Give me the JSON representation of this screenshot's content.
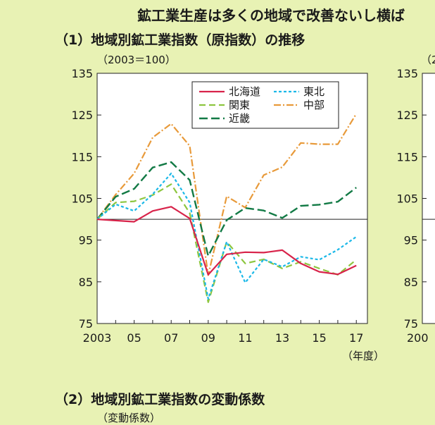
{
  "header": {
    "text": "鉱工業生産は多くの地域で改善ないし横ば"
  },
  "section1": {
    "title": "（1）地域別鉱工業指数（原指数）の推移",
    "unit": "（2003＝100）"
  },
  "section2": {
    "title": "（2）地域別鉱工業指数の変動係数",
    "unit": "（変動係数）"
  },
  "right_panel": {
    "unit_fragment": "（2",
    "y_ticks": [
      "135",
      "125",
      "115",
      "105",
      "95",
      "85",
      "75"
    ],
    "x_tick_fragment": "200"
  },
  "chart_data": {
    "type": "line",
    "x_unit": "（年度）",
    "x_tick_labels": [
      "2003",
      "05",
      "07",
      "09",
      "11",
      "13",
      "15",
      "17"
    ],
    "x_ticks_at": [
      2003,
      2005,
      2007,
      2009,
      2011,
      2013,
      2015,
      2017
    ],
    "ylim": [
      75,
      135
    ],
    "y_ticks": [
      135,
      125,
      115,
      105,
      95,
      85,
      75
    ],
    "baseline": 100,
    "x": [
      2003,
      2004,
      2005,
      2006,
      2007,
      2008,
      2009,
      2010,
      2011,
      2012,
      2013,
      2014,
      2015,
      2016,
      2017
    ],
    "series": [
      {
        "name": "北海道",
        "color": "#d8234a",
        "dash": "",
        "width": 2.2,
        "values": [
          100.0,
          99.7,
          99.4,
          102.0,
          103.0,
          100.2,
          86.7,
          91.6,
          92.1,
          92.0,
          92.6,
          89.4,
          87.4,
          86.8,
          88.9
        ]
      },
      {
        "name": "東北",
        "color": "#1ab8e8",
        "dash": "4,3",
        "width": 2.2,
        "values": [
          100.0,
          103.6,
          102.0,
          106.0,
          111.0,
          104.0,
          80.9,
          94.6,
          84.8,
          90.4,
          88.6,
          91.0,
          90.3,
          92.7,
          95.8
        ]
      },
      {
        "name": "関東",
        "color": "#8dc63f",
        "dash": "9,5",
        "width": 2.2,
        "values": [
          100.0,
          104.0,
          104.3,
          105.8,
          108.4,
          101.5,
          80.1,
          94.6,
          89.4,
          90.4,
          88.2,
          89.8,
          88.2,
          86.7,
          90.3
        ]
      },
      {
        "name": "中部",
        "color": "#e89a3a",
        "dash": "10,3,2,3",
        "width": 2.2,
        "values": [
          100.0,
          105.9,
          111.0,
          119.6,
          122.9,
          117.6,
          86.6,
          105.5,
          102.8,
          110.6,
          112.5,
          118.3,
          118.0,
          118.0,
          125.3
        ]
      },
      {
        "name": "近畿",
        "color": "#127a45",
        "dash": "12,5",
        "width": 2.4,
        "values": [
          100.0,
          105.4,
          107.3,
          112.4,
          113.7,
          109.4,
          91.2,
          99.8,
          102.7,
          102.1,
          100.3,
          103.2,
          103.5,
          104.2,
          107.6
        ]
      }
    ],
    "legend": {
      "position": "top-right",
      "columns": 2
    }
  }
}
